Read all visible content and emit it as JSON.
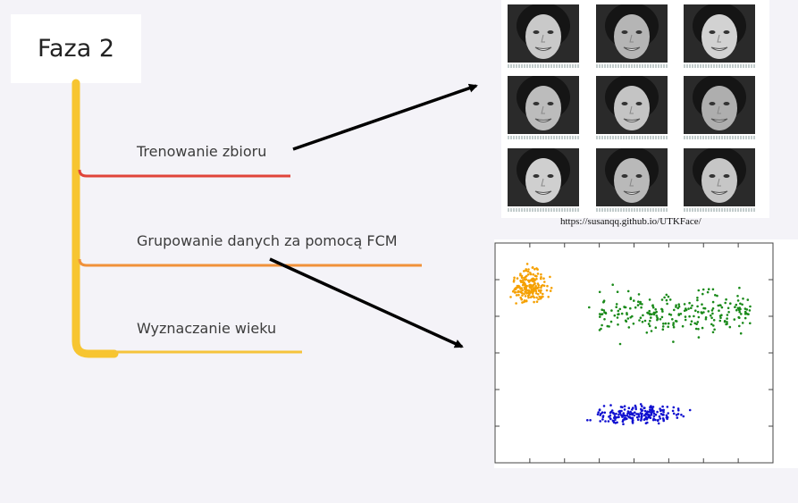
{
  "title": "Faza 2",
  "branches": [
    {
      "label": "Trenowanie zbioru",
      "color": "#e0443a"
    },
    {
      "label": "Grupowanie danych za pomocą FCM",
      "color": "#f0913a"
    },
    {
      "label": "Wyznaczanie wieku",
      "color": "#f5c33b"
    }
  ],
  "trunk_color": "#f7c531",
  "faces": {
    "source": "https://susanqq.github.io/UTKFace/",
    "count": 9,
    "icon": "face-photo-icon"
  },
  "scatter": {
    "clusters": [
      {
        "color": "#f5a000",
        "icon": "cluster-orange"
      },
      {
        "color": "#1a8a1a",
        "icon": "cluster-green"
      },
      {
        "color": "#1010d0",
        "icon": "cluster-blue"
      }
    ]
  }
}
